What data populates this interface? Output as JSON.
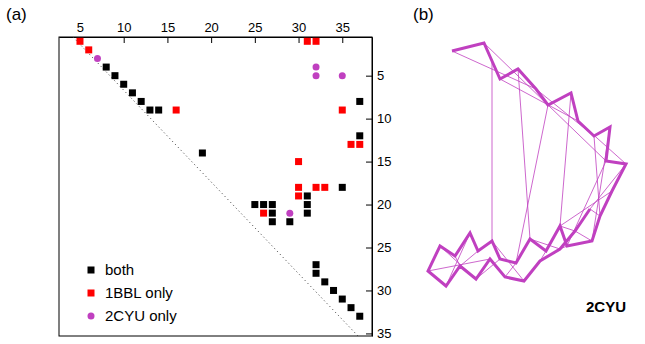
{
  "chart_data": [
    {
      "type": "scatter",
      "title": "(a)",
      "xlim": [
        2.6,
        38.4
      ],
      "ylim": [
        0.5,
        35.3
      ],
      "xticks": [
        5,
        10,
        15,
        20,
        25,
        30,
        35
      ],
      "yticks": [
        5,
        10,
        15,
        20,
        25,
        30,
        35
      ],
      "grid": false,
      "legend": "lower left",
      "series": [
        {
          "name": "both",
          "color": "#000000",
          "marker": "square",
          "x": [
            8,
            9,
            10,
            11,
            12,
            13,
            14,
            19,
            25,
            26,
            27,
            27,
            27,
            29,
            31,
            31,
            31,
            35,
            37,
            37,
            32,
            32,
            33,
            34,
            35,
            36,
            37
          ],
          "values": [
            4,
            5,
            6,
            7,
            8,
            9,
            9,
            14,
            20,
            20,
            20,
            21,
            22,
            22,
            19,
            20,
            21,
            18,
            8,
            12,
            27,
            28,
            29,
            30,
            31,
            32,
            33
          ]
        },
        {
          "name": "1BBL only",
          "color": "#ff0000",
          "marker": "square",
          "x": [
            5,
            6,
            16,
            31,
            32,
            35,
            36,
            37,
            30,
            30,
            30,
            32,
            33,
            26
          ],
          "values": [
            1,
            2,
            9,
            1,
            1,
            9,
            13,
            13,
            15,
            18,
            19,
            18,
            18,
            21
          ]
        },
        {
          "name": "2CYU only",
          "color": "#c040c0",
          "marker": "circle",
          "x": [
            7,
            32,
            32,
            35,
            29
          ],
          "values": [
            3,
            4,
            5,
            5,
            21
          ]
        }
      ]
    },
    {
      "type": "line",
      "title": "(b)",
      "annotation": "2CYU",
      "tick_labels": false,
      "color": "#c040c0",
      "x": [
        16,
        32,
        36,
        40,
        49,
        58,
        64,
        75.5,
        79,
        87,
        95,
        93,
        103,
        96,
        90,
        86,
        73.5,
        70,
        63,
        55,
        48,
        40,
        36,
        29,
        25,
        17.5,
        10,
        4,
        13,
        20,
        28,
        35,
        42.5,
        52,
        60,
        70,
        77.5,
        85
      ],
      "values": [
        125,
        129,
        120,
        111,
        116,
        106,
        98,
        104,
        90,
        82.5,
        87,
        70,
        68.5,
        55,
        42.5,
        30,
        27.5,
        37.5,
        25,
        31,
        19,
        21,
        30,
        25,
        34,
        22.5,
        27.5,
        15,
        7.5,
        17.5,
        11,
        21,
        12,
        10,
        20,
        26,
        35,
        46
      ],
      "contacts": [
        [
          0,
          5
        ],
        [
          1,
          6
        ],
        [
          3,
          8
        ],
        [
          5,
          9
        ],
        [
          6,
          11
        ],
        [
          8,
          12
        ],
        [
          9,
          14
        ],
        [
          7,
          17
        ],
        [
          10,
          15
        ],
        [
          11,
          16
        ],
        [
          13,
          17
        ],
        [
          12,
          37
        ],
        [
          4,
          19
        ],
        [
          6,
          20
        ],
        [
          2,
          22
        ],
        [
          16,
          35
        ],
        [
          18,
          34
        ],
        [
          17,
          36
        ],
        [
          20,
          32
        ],
        [
          21,
          30
        ],
        [
          23,
          29
        ],
        [
          24,
          28
        ],
        [
          22,
          33
        ],
        [
          19,
          35
        ],
        [
          14,
          37
        ],
        [
          15,
          36
        ],
        [
          25,
          29
        ],
        [
          26,
          30
        ],
        [
          27,
          31
        ]
      ]
    }
  ]
}
